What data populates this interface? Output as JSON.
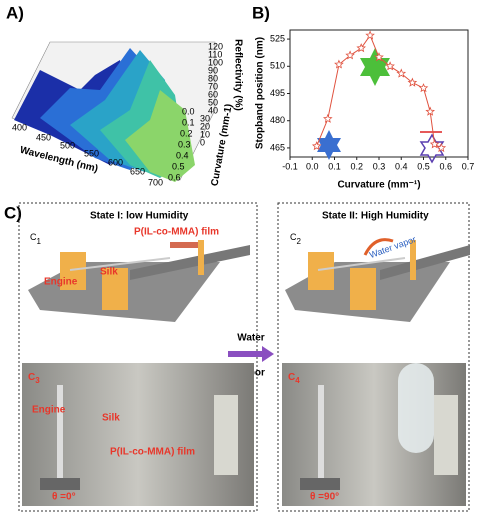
{
  "panels": {
    "a": {
      "label": "A)",
      "x_label": "Wavelength (nm)",
      "y_label": "Curvature (mm-1)",
      "z_label": "Reflectivity (%)",
      "x_ticks": [
        "400",
        "450",
        "500",
        "550",
        "600",
        "650",
        "700"
      ],
      "y_ticks": [
        "0.0",
        "0.1",
        "0.2",
        "0.3",
        "0.4",
        "0.5",
        "0.6"
      ],
      "z_ticks": [
        "120",
        "110",
        "100",
        "90",
        "80",
        "70",
        "60",
        "50",
        "40",
        "30",
        "20",
        "10",
        "0"
      ]
    },
    "c": {
      "label": "C)",
      "state_1": "State I: low Humidity",
      "state_2": "State II: High Humidity",
      "c1": "C",
      "c1_sub": "1",
      "c2": "C",
      "c2_sub": "2",
      "c3": "C",
      "c3_sub": "3",
      "c4": "C",
      "c4_sub": "4",
      "film": "P(IL-co-MMA) film",
      "silk": "Silk",
      "engine": "Engine",
      "water_vapor": "Water vapor",
      "arrow_1": "Water",
      "arrow_2": "Vapor",
      "photo_engine": "Engine",
      "photo_silk": "Silk",
      "photo_film": "P(IL-co-MMA) film",
      "theta_1": "θ =0°",
      "theta_2": "θ =90°"
    }
  },
  "chart_data": {
    "type": "line",
    "label": "B)",
    "x_label": "Curvature (mm⁻¹)",
    "y_label": "Stopband position (nm)",
    "color": "#e0523f",
    "x": [
      0.02,
      0.07,
      0.12,
      0.17,
      0.22,
      0.26,
      0.3,
      0.35,
      0.4,
      0.45,
      0.5,
      0.53,
      0.55,
      0.58
    ],
    "values": [
      466,
      481,
      511,
      516,
      520,
      527,
      515,
      510,
      506,
      501,
      498,
      485,
      467,
      465
    ],
    "xlim": [
      -0.1,
      0.7
    ],
    "xticks": [
      -0.1,
      {
        "value": 0,
        "label": "0.0"
      },
      0.1,
      0.2,
      0.3,
      0.4,
      0.5,
      0.6,
      0.7
    ],
    "ylim": [
      460,
      530
    ],
    "yticks": [
      465,
      480,
      495,
      510,
      525
    ]
  }
}
